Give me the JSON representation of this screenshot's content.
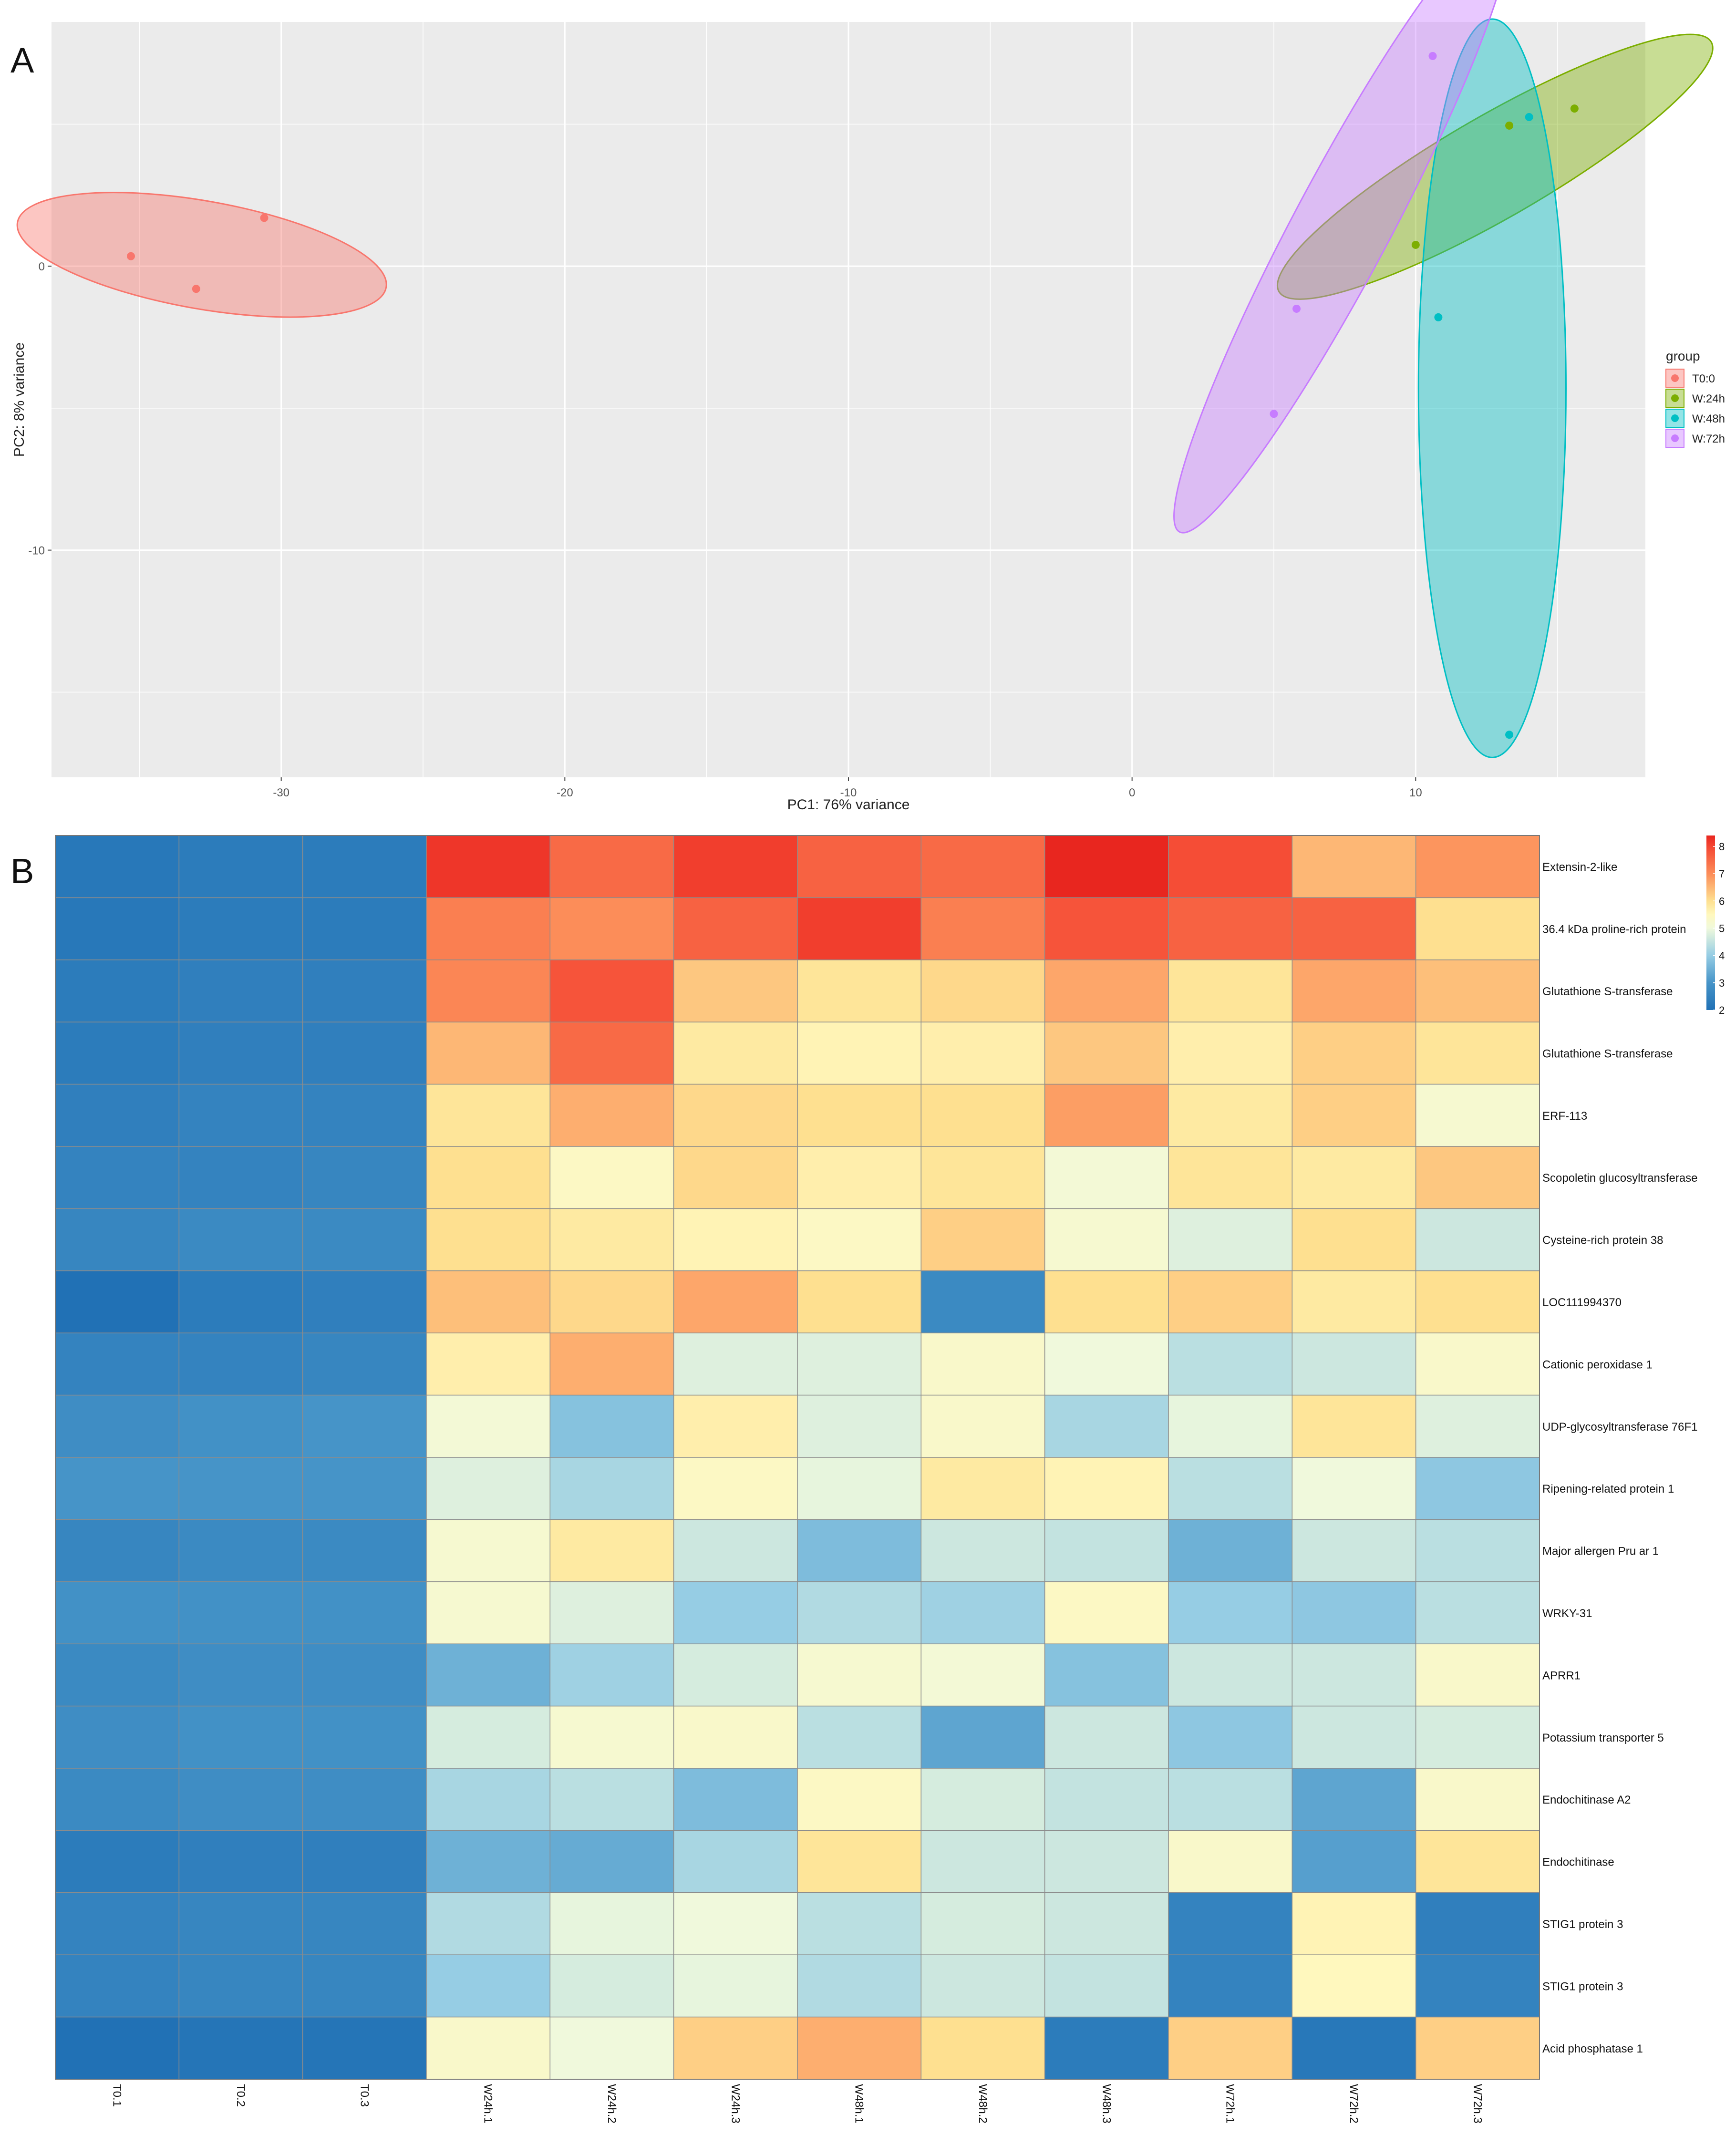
{
  "panels": {
    "a_label": "A",
    "b_label": "B"
  },
  "colors": {
    "panel_bg": "#ebebeb",
    "grid": "#ffffff",
    "T0:0": "#f8766d",
    "W:24h": "#7cae00",
    "W:48h": "#00bfc4",
    "W:72h": "#c77cff",
    "cell_border": "#8c8c8c",
    "heat_low": "#2b7bba",
    "heat_mid": "#ffffbf",
    "heat_high": "#e8261f"
  },
  "chart_data": [
    {
      "type": "scatter",
      "title": "",
      "xlabel": "PC1: 76% variance",
      "ylabel": "PC2: 8% variance",
      "xlim": [
        -38.1,
        18.1
      ],
      "ylim": [
        -18.0,
        8.6
      ],
      "xticks": [
        -30,
        -20,
        -10,
        0,
        10
      ],
      "xtick_labels": [
        "-30",
        "-20",
        "-10",
        "0",
        "10"
      ],
      "yticks": [
        -10,
        0
      ],
      "ytick_labels": [
        "-10",
        "0"
      ],
      "grid": true,
      "legend": {
        "title": "group",
        "position": "right",
        "entries": [
          "T0:0",
          "W:24h",
          "W:48h",
          "W:72h"
        ]
      },
      "series": [
        {
          "name": "T0:0",
          "points": [
            [
              -35.3,
              0.35
            ],
            [
              -33.0,
              -0.8
            ],
            [
              -30.6,
              1.7
            ]
          ]
        },
        {
          "name": "W:24h",
          "points": [
            [
              10.0,
              0.75
            ],
            [
              13.3,
              4.95
            ],
            [
              15.6,
              5.55
            ]
          ]
        },
        {
          "name": "W:48h",
          "points": [
            [
              10.8,
              -1.8
            ],
            [
              14.0,
              5.25
            ],
            [
              13.3,
              -16.5
            ]
          ]
        },
        {
          "name": "W:72h",
          "points": [
            [
              5.8,
              -1.5
            ],
            [
              5.0,
              -5.2
            ],
            [
              10.6,
              7.4
            ]
          ]
        }
      ],
      "ellipses": [
        {
          "group": "T0:0",
          "center": [
            -32.8,
            0.4
          ],
          "semi_axes": [
            6.6,
            1.9
          ],
          "rotation_deg": 10
        },
        {
          "group": "W:24h",
          "center": [
            12.8,
            3.5
          ],
          "semi_axes": [
            8.8,
            1.8
          ],
          "rotation_deg": -30
        },
        {
          "group": "W:48h",
          "center": [
            12.7,
            -4.3
          ],
          "semi_axes": [
            2.6,
            13.0
          ],
          "rotation_deg": 0
        },
        {
          "group": "W:72h",
          "center": [
            7.4,
            1.4
          ],
          "semi_axes": [
            12.2,
            1.7
          ],
          "rotation_deg": -62
        }
      ]
    },
    {
      "type": "heatmap",
      "title": "",
      "columns": [
        "T0.1",
        "T0.2",
        "T0.3",
        "W24h.1",
        "W24h.2",
        "W24h.3",
        "W48h.1",
        "W48h.2",
        "W48h.3",
        "W72h.1",
        "W72h.2",
        "W72h.3"
      ],
      "rows": [
        "Extensin-2-like",
        "36.4 kDa proline-rich protein",
        "Glutathione S-transferase",
        "Glutathione S-transferase",
        "ERF-113",
        "Scopoletin glucosyltransferase",
        "Cysteine-rich protein 38",
        "LOC111994370",
        "Cationic peroxidase 1",
        "UDP-glycosyltransferase 76F1",
        "Ripening-related protein 1",
        "Major allergen Pru ar 1",
        "WRKY-31",
        "APRR1",
        "Potassium transporter 5",
        "Endochitinase A2",
        "Endochitinase",
        "STIG1 protein 3",
        "STIG1 protein 3",
        "Acid phosphatase 1"
      ],
      "values": [
        [
          2.2,
          2.3,
          2.3,
          8.2,
          7.5,
          8.1,
          7.6,
          7.5,
          8.4,
          7.9,
          6.5,
          6.9
        ],
        [
          2.2,
          2.3,
          2.3,
          7.2,
          7.0,
          7.6,
          8.1,
          7.2,
          7.8,
          7.6,
          7.6,
          6.0
        ],
        [
          2.3,
          2.4,
          2.4,
          7.1,
          7.8,
          6.3,
          5.9,
          6.1,
          6.7,
          5.9,
          6.7,
          6.4
        ],
        [
          2.3,
          2.4,
          2.4,
          6.5,
          7.5,
          5.8,
          5.6,
          5.7,
          6.3,
          5.7,
          6.2,
          5.9
        ],
        [
          2.4,
          2.5,
          2.5,
          5.9,
          6.6,
          6.1,
          6.0,
          6.0,
          6.8,
          5.8,
          6.2,
          5.2
        ],
        [
          2.5,
          2.5,
          2.6,
          6.0,
          5.4,
          6.1,
          5.7,
          5.9,
          5.1,
          5.9,
          5.8,
          6.3
        ],
        [
          2.6,
          2.7,
          2.7,
          6.0,
          5.8,
          5.6,
          5.4,
          6.2,
          5.2,
          4.8,
          6.0,
          4.6
        ],
        [
          2.0,
          2.3,
          2.4,
          6.4,
          6.1,
          6.7,
          6.0,
          2.7,
          6.0,
          6.2,
          5.8,
          6.0
        ],
        [
          2.5,
          2.5,
          2.6,
          5.7,
          6.6,
          4.8,
          4.8,
          5.3,
          5.0,
          4.4,
          4.6,
          5.3
        ],
        [
          2.8,
          2.9,
          3.0,
          5.1,
          3.8,
          5.7,
          4.8,
          5.3,
          4.2,
          4.9,
          5.9,
          4.8
        ],
        [
          3.0,
          3.0,
          3.0,
          4.8,
          4.2,
          5.4,
          4.9,
          5.8,
          5.6,
          4.4,
          5.0,
          3.9
        ],
        [
          2.6,
          2.7,
          2.7,
          5.2,
          5.8,
          4.6,
          3.7,
          4.6,
          4.5,
          3.5,
          4.6,
          4.4
        ],
        [
          2.9,
          2.9,
          2.9,
          5.2,
          4.8,
          4.0,
          4.3,
          4.1,
          5.4,
          4.0,
          3.9,
          4.4
        ],
        [
          2.7,
          2.8,
          2.8,
          3.5,
          4.1,
          4.7,
          5.2,
          5.1,
          3.8,
          4.6,
          4.6,
          5.3
        ],
        [
          2.8,
          2.9,
          2.9,
          4.7,
          5.2,
          5.3,
          4.4,
          3.3,
          4.6,
          3.9,
          4.6,
          4.7
        ],
        [
          2.7,
          2.8,
          2.8,
          4.2,
          4.4,
          3.7,
          5.4,
          4.7,
          4.5,
          4.4,
          3.3,
          5.3
        ],
        [
          2.3,
          2.4,
          2.4,
          3.5,
          3.4,
          4.2,
          5.9,
          4.6,
          4.6,
          5.3,
          3.2,
          5.9
        ],
        [
          2.5,
          2.6,
          2.6,
          4.3,
          4.9,
          5.0,
          4.4,
          4.7,
          4.6,
          2.5,
          5.6,
          2.4
        ],
        [
          2.5,
          2.6,
          2.6,
          4.0,
          4.7,
          4.9,
          4.3,
          4.6,
          4.5,
          2.5,
          5.5,
          2.5
        ],
        [
          2.0,
          2.1,
          2.1,
          5.3,
          5.0,
          6.2,
          6.6,
          6.0,
          2.3,
          6.2,
          2.2,
          6.2
        ]
      ],
      "color_scale": {
        "min": 2,
        "max": 8.4,
        "ticks": [
          2,
          3,
          4,
          5,
          6,
          7,
          8
        ],
        "tick_labels": [
          "2",
          "3",
          "4",
          "5",
          "6",
          "7",
          "8"
        ]
      }
    }
  ]
}
